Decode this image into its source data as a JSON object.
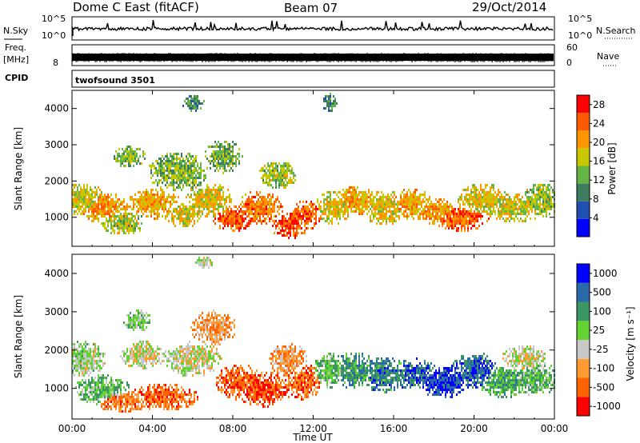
{
  "header": {
    "station": "Dome C East (fitACF)",
    "beam": "Beam 07",
    "date": "29/Oct/2014"
  },
  "panels": {
    "nsky": {
      "left_label": "N.Sky",
      "right_label": "N.Search",
      "left_ticks": [
        "10^5",
        "10^0"
      ],
      "right_ticks": [
        "10^5",
        "10^0"
      ]
    },
    "freq": {
      "left_label_1": "Freq.",
      "left_label_2": "[MHz]",
      "left_tick_top": "",
      "left_tick_bottom": "8",
      "right_label": "Nave",
      "right_tick_top": "60",
      "right_tick_bottom": "0"
    },
    "cpid": {
      "label": "CPID",
      "text": "twofsound 3501"
    }
  },
  "colors": {
    "power": [
      "#0000ff",
      "#1f4fb0",
      "#3c7d5f",
      "#64b446",
      "#c8c800",
      "#ff9600",
      "#ff5a00",
      "#ff0000"
    ],
    "velocity": [
      "#ff0000",
      "#ff6400",
      "#ff9b32",
      "#c8c8c8",
      "#64d232",
      "#3c9664",
      "#2a6aa8",
      "#0000ff"
    ]
  },
  "chart_data": [
    {
      "type": "heatmap",
      "title": "",
      "xlabel": "",
      "ylabel": "Slant Range [km]",
      "x_ticks": [
        "00:00",
        "04:00",
        "08:00",
        "12:00",
        "16:00",
        "20:00",
        "00:00"
      ],
      "y_ticks": [
        1000,
        2000,
        3000,
        4000
      ],
      "xlim_hours": [
        0,
        24
      ],
      "ylim_km": [
        200,
        4500
      ],
      "colorbar": {
        "label": "Power [dB]",
        "ticks": [
          4,
          8,
          12,
          16,
          20,
          24,
          28
        ],
        "range": [
          0,
          30
        ]
      },
      "blobs": [
        {
          "t": 0.5,
          "r": 1500,
          "dt": 1.0,
          "dr": 400,
          "level": 0.55
        },
        {
          "t": 1.5,
          "r": 1300,
          "dt": 1.2,
          "dr": 350,
          "level": 0.7
        },
        {
          "t": 2.5,
          "r": 900,
          "dt": 1.0,
          "dr": 300,
          "level": 0.5
        },
        {
          "t": 2.8,
          "r": 2700,
          "dt": 0.7,
          "dr": 250,
          "level": 0.45
        },
        {
          "t": 4.0,
          "r": 1400,
          "dt": 1.2,
          "dr": 350,
          "level": 0.65
        },
        {
          "t": 5.2,
          "r": 2300,
          "dt": 1.3,
          "dr": 450,
          "level": 0.45
        },
        {
          "t": 5.5,
          "r": 1100,
          "dt": 0.8,
          "dr": 300,
          "level": 0.6
        },
        {
          "t": 6.8,
          "r": 1500,
          "dt": 1.0,
          "dr": 400,
          "level": 0.6
        },
        {
          "t": 7.5,
          "r": 2700,
          "dt": 0.8,
          "dr": 400,
          "level": 0.4
        },
        {
          "t": 8.0,
          "r": 1000,
          "dt": 0.9,
          "dr": 300,
          "level": 0.8
        },
        {
          "t": 9.3,
          "r": 1300,
          "dt": 1.0,
          "dr": 400,
          "level": 0.75
        },
        {
          "t": 10.2,
          "r": 2200,
          "dt": 0.8,
          "dr": 350,
          "level": 0.5
        },
        {
          "t": 10.8,
          "r": 800,
          "dt": 0.8,
          "dr": 300,
          "level": 0.85
        },
        {
          "t": 11.6,
          "r": 1100,
          "dt": 0.7,
          "dr": 350,
          "level": 0.8
        },
        {
          "t": 13.0,
          "r": 1300,
          "dt": 0.8,
          "dr": 400,
          "level": 0.6
        },
        {
          "t": 14.2,
          "r": 1500,
          "dt": 1.0,
          "dr": 350,
          "level": 0.65
        },
        {
          "t": 15.5,
          "r": 1300,
          "dt": 1.0,
          "dr": 400,
          "level": 0.6
        },
        {
          "t": 16.8,
          "r": 1400,
          "dt": 1.0,
          "dr": 350,
          "level": 0.65
        },
        {
          "t": 18.0,
          "r": 1200,
          "dt": 1.0,
          "dr": 300,
          "level": 0.7
        },
        {
          "t": 19.3,
          "r": 1000,
          "dt": 1.2,
          "dr": 300,
          "level": 0.8
        },
        {
          "t": 20.5,
          "r": 1500,
          "dt": 1.2,
          "dr": 400,
          "level": 0.6
        },
        {
          "t": 22.0,
          "r": 1300,
          "dt": 1.3,
          "dr": 350,
          "level": 0.55
        },
        {
          "t": 23.3,
          "r": 1500,
          "dt": 0.8,
          "dr": 400,
          "level": 0.5
        },
        {
          "t": 6.0,
          "r": 4200,
          "dt": 0.5,
          "dr": 200,
          "level": 0.35
        },
        {
          "t": 12.8,
          "r": 4200,
          "dt": 0.4,
          "dr": 200,
          "level": 0.35
        }
      ]
    },
    {
      "type": "heatmap",
      "title": "",
      "xlabel": "Time UT",
      "ylabel": "Slant Range [km]",
      "x_ticks": [
        "00:00",
        "04:00",
        "08:00",
        "12:00",
        "16:00",
        "20:00",
        "00:00"
      ],
      "y_ticks": [
        1000,
        2000,
        3000,
        4000
      ],
      "xlim_hours": [
        0,
        24
      ],
      "ylim_km": [
        200,
        4500
      ],
      "colorbar": {
        "label": "Velocity [m s⁻¹]",
        "ticks": [
          "-1000",
          "-500",
          "-100",
          "-25",
          "25",
          "100",
          "500",
          "1000"
        ],
        "range": [
          -1000,
          1000
        ]
      },
      "blobs": [
        {
          "t": 0.5,
          "r": 1800,
          "dt": 1.0,
          "dr": 400,
          "level": 0.5
        },
        {
          "t": 1.5,
          "r": 1000,
          "dt": 1.2,
          "dr": 350,
          "level": 0.6
        },
        {
          "t": 2.5,
          "r": 700,
          "dt": 1.2,
          "dr": 250,
          "level": 0.25
        },
        {
          "t": 3.5,
          "r": 1900,
          "dt": 1.0,
          "dr": 300,
          "level": 0.45
        },
        {
          "t": 4.5,
          "r": 800,
          "dt": 1.5,
          "dr": 300,
          "level": 0.2
        },
        {
          "t": 6.0,
          "r": 1800,
          "dt": 1.2,
          "dr": 400,
          "level": 0.45
        },
        {
          "t": 7.0,
          "r": 2600,
          "dt": 1.0,
          "dr": 400,
          "level": 0.3
        },
        {
          "t": 8.3,
          "r": 1200,
          "dt": 1.0,
          "dr": 400,
          "level": 0.2
        },
        {
          "t": 9.5,
          "r": 1000,
          "dt": 1.2,
          "dr": 400,
          "level": 0.15
        },
        {
          "t": 10.7,
          "r": 1800,
          "dt": 0.8,
          "dr": 400,
          "level": 0.3
        },
        {
          "t": 11.5,
          "r": 1200,
          "dt": 0.8,
          "dr": 400,
          "level": 0.2
        },
        {
          "t": 12.8,
          "r": 1500,
          "dt": 0.7,
          "dr": 400,
          "level": 0.6
        },
        {
          "t": 14.0,
          "r": 1500,
          "dt": 1.0,
          "dr": 400,
          "level": 0.7
        },
        {
          "t": 15.5,
          "r": 1400,
          "dt": 1.1,
          "dr": 400,
          "level": 0.75
        },
        {
          "t": 17.0,
          "r": 1400,
          "dt": 1.0,
          "dr": 350,
          "level": 0.8
        },
        {
          "t": 18.5,
          "r": 1200,
          "dt": 1.2,
          "dr": 350,
          "level": 0.88
        },
        {
          "t": 20.0,
          "r": 1500,
          "dt": 1.0,
          "dr": 400,
          "level": 0.8
        },
        {
          "t": 21.5,
          "r": 1200,
          "dt": 1.2,
          "dr": 350,
          "level": 0.65
        },
        {
          "t": 23.0,
          "r": 1300,
          "dt": 1.0,
          "dr": 400,
          "level": 0.6
        },
        {
          "t": 22.5,
          "r": 1800,
          "dt": 1.0,
          "dr": 300,
          "level": 0.45
        },
        {
          "t": 6.5,
          "r": 4300,
          "dt": 0.4,
          "dr": 150,
          "level": 0.45
        },
        {
          "t": 3.2,
          "r": 2800,
          "dt": 0.6,
          "dr": 250,
          "level": 0.55
        }
      ]
    }
  ]
}
